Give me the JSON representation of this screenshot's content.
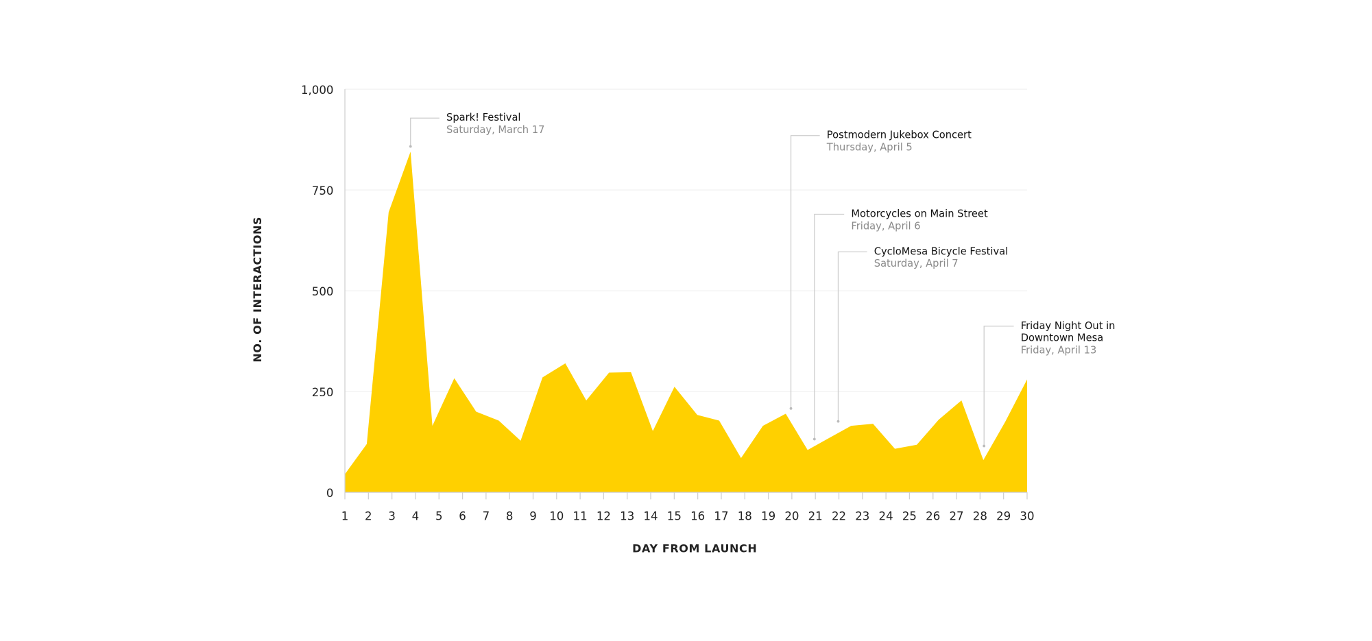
{
  "chart_data": {
    "type": "area",
    "color": "#ffd000",
    "x_label": "DAY FROM LAUNCH",
    "y_label": "NO. OF INTERACTIONS",
    "x": [
      1,
      1.93,
      2.86,
      3.79,
      4.72,
      5.65,
      6.58,
      7.54,
      8.47,
      9.4,
      10.37,
      11.26,
      12.23,
      13.16,
      14.09,
      15.01,
      15.98,
      16.91,
      17.84,
      18.77,
      19.74,
      20.67,
      21.59,
      22.52,
      23.45,
      24.38,
      25.31,
      26.24,
      27.21,
      28.14,
      29.07,
      30
    ],
    "values": [
      45,
      120,
      695,
      845,
      165,
      283,
      200,
      178,
      128,
      285,
      320,
      228,
      297,
      298,
      152,
      262,
      192,
      178,
      85,
      165,
      195,
      105,
      135,
      165,
      170,
      108,
      118,
      180,
      228,
      80,
      175,
      280
    ],
    "xlim": [
      1,
      30
    ],
    "xticks": [
      1,
      2,
      3,
      4,
      5,
      6,
      7,
      8,
      9,
      10,
      11,
      12,
      13,
      14,
      15,
      16,
      17,
      18,
      19,
      20,
      21,
      22,
      23,
      24,
      25,
      26,
      27,
      28,
      29,
      30
    ],
    "ylim": [
      0,
      1000
    ],
    "yticks": [
      0,
      250,
      500,
      750,
      {
        "value": 1000,
        "label": "1,000"
      }
    ],
    "grid": true,
    "annotations": [
      {
        "title": [
          "Spark! Festival"
        ],
        "date": "Saturday, March 17",
        "x": 3.79,
        "y": 858
      },
      {
        "title": [
          "Postmodern Jukebox Concert"
        ],
        "date": "Thursday, April 5",
        "x": 19.96,
        "y": 208
      },
      {
        "title": [
          "Motorcycles on Main Street"
        ],
        "date": "Friday, April 6",
        "x": 20.96,
        "y": 132
      },
      {
        "title": [
          "CycloMesa Bicycle Festival"
        ],
        "date": "Saturday, April 7",
        "x": 21.97,
        "y": 176
      },
      {
        "title": [
          "Friday Night Out in",
          "Downtown Mesa"
        ],
        "date": "Friday, April 13",
        "x": 28.17,
        "y": 115
      }
    ]
  }
}
